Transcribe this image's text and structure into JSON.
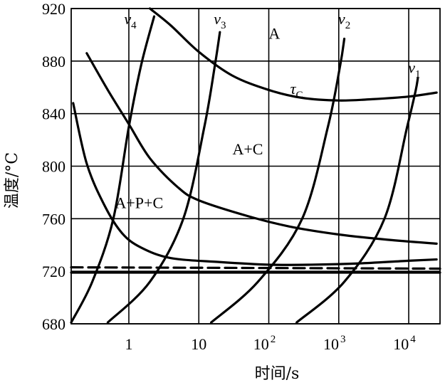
{
  "chart_data": {
    "type": "line",
    "xlabel": "时间/s",
    "ylabel": "温度/°C",
    "x_scale": "log",
    "xlim": [
      0.15,
      28000
    ],
    "ylim": [
      680,
      920
    ],
    "x_ticks": [
      {
        "value": 1,
        "label": "1"
      },
      {
        "value": 10,
        "label": "10"
      },
      {
        "value": 100,
        "label": "10",
        "exp": "2"
      },
      {
        "value": 1000,
        "label": "10",
        "exp": "3"
      },
      {
        "value": 10000,
        "label": "10",
        "exp": "4"
      }
    ],
    "y_ticks": [
      680,
      720,
      760,
      800,
      840,
      880,
      920
    ],
    "grid": true,
    "series": [
      {
        "name": "",
        "style": "solid",
        "x": [
          0.16,
          0.25,
          0.45,
          0.8,
          1.5,
          4,
          20,
          100,
          400,
          2000,
          10000,
          25000
        ],
        "y": [
          848,
          802,
          770,
          749,
          738,
          730,
          727,
          725,
          725,
          726,
          728,
          729
        ]
      },
      {
        "name": "",
        "style": "solid",
        "x": [
          0.25,
          0.5,
          1,
          2,
          5,
          10,
          50,
          200,
          1000,
          5000,
          25000
        ],
        "y": [
          886,
          858,
          832,
          806,
          784,
          774,
          762,
          754,
          748,
          744,
          741
        ]
      },
      {
        "name": "τC",
        "style": "solid",
        "x": [
          2,
          4,
          10,
          30,
          100,
          300,
          1000,
          3000,
          10000,
          25000
        ],
        "y": [
          920,
          907,
          887,
          869,
          858,
          852,
          850,
          851,
          853,
          856
        ]
      },
      {
        "name": "v4",
        "style": "solid",
        "x": [
          0.15,
          0.3,
          0.6,
          1,
          1.5,
          2.3
        ],
        "y": [
          681,
          712,
          760,
          830,
          877,
          914
        ]
      },
      {
        "name": "v3",
        "style": "solid",
        "x": [
          0.5,
          2,
          6,
          12,
          17,
          20
        ],
        "y": [
          681,
          712,
          760,
          830,
          877,
          902
        ]
      },
      {
        "name": "v2",
        "style": "solid",
        "x": [
          15,
          70,
          300,
          700,
          1050,
          1200
        ],
        "y": [
          681,
          712,
          760,
          830,
          877,
          897
        ]
      },
      {
        "name": "v1",
        "style": "solid",
        "x": [
          250,
          1200,
          4500,
          9500,
          12500,
          13500
        ],
        "y": [
          681,
          712,
          760,
          830,
          857,
          867
        ]
      },
      {
        "name": "",
        "style": "dashed",
        "x": [
          0.15,
          28000
        ],
        "y": [
          723,
          722
        ]
      },
      {
        "name": "",
        "style": "solid",
        "x": [
          0.15,
          28000
        ],
        "y": [
          719,
          719
        ]
      }
    ],
    "annotations": [
      {
        "text": "A",
        "x": 120,
        "y": 897
      },
      {
        "text": "A+C",
        "x": 50,
        "y": 809
      },
      {
        "text": "A+P+C",
        "x": 1.4,
        "y": 768
      },
      {
        "text": "τ",
        "sub": "C",
        "x": 250,
        "y": 855
      },
      {
        "text": "v",
        "sub": "4",
        "x": 1.05,
        "y": 908
      },
      {
        "text": "v",
        "sub": "3",
        "x": 20,
        "y": 908
      },
      {
        "text": "v",
        "sub": "2",
        "x": 1200,
        "y": 908
      },
      {
        "text": "v",
        "sub": "1",
        "x": 12000,
        "y": 871
      }
    ]
  }
}
